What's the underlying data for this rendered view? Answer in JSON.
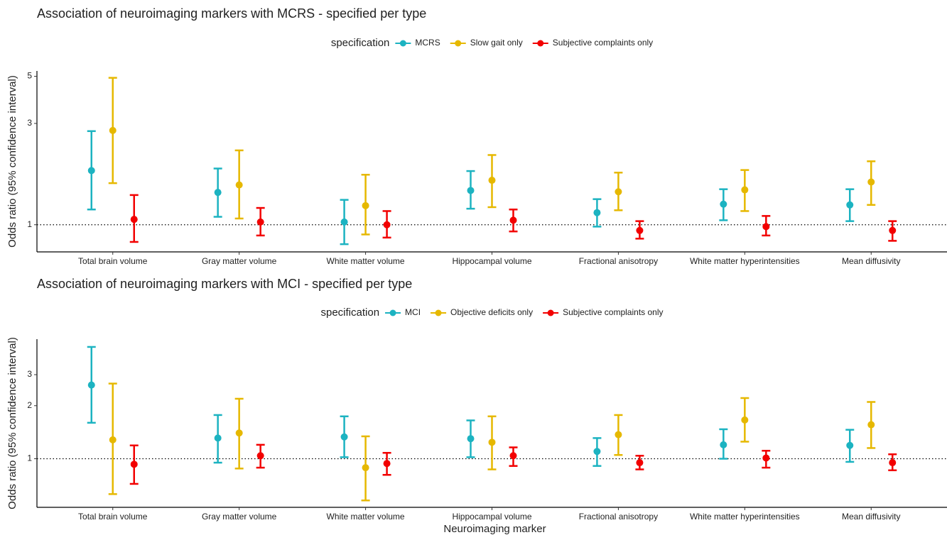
{
  "chart_data": [
    {
      "type": "errorbar",
      "title": "Association of neuroimaging markers with MCRS - specified per type",
      "legend_title": "specification",
      "y_label": "Odds ratio (95% confidence interval)",
      "log_y": true,
      "ylim": [
        0.745,
        5.3
      ],
      "yticks": [
        1,
        3,
        5
      ],
      "reference_line": 1,
      "categories": [
        "Total brain volume",
        "Gray matter volume",
        "White matter volume",
        "Hippocampal volume",
        "Fractional anisotropy",
        "White matter hyperintensities",
        "Mean diffusivity"
      ],
      "series": [
        {
          "name": "MCRS",
          "color": "#1cb3c1",
          "values": [
            1.8,
            1.42,
            1.03,
            1.45,
            1.14,
            1.25,
            1.24
          ],
          "lower": [
            1.18,
            1.09,
            0.81,
            1.19,
            0.98,
            1.05,
            1.04
          ],
          "upper": [
            2.76,
            1.84,
            1.31,
            1.79,
            1.32,
            1.47,
            1.47
          ]
        },
        {
          "name": "Slow gait only",
          "color": "#e6b800",
          "values": [
            2.78,
            1.54,
            1.23,
            1.62,
            1.43,
            1.46,
            1.59
          ],
          "lower": [
            1.57,
            1.07,
            0.9,
            1.21,
            1.17,
            1.16,
            1.24
          ],
          "upper": [
            4.92,
            2.24,
            1.72,
            2.13,
            1.76,
            1.81,
            1.99
          ]
        },
        {
          "name": "Subjective complaints only",
          "color": "#f20000",
          "values": [
            1.06,
            1.03,
            1.0,
            1.05,
            0.94,
            0.98,
            0.94
          ],
          "lower": [
            0.83,
            0.89,
            0.87,
            0.93,
            0.86,
            0.89,
            0.84
          ],
          "upper": [
            1.38,
            1.2,
            1.16,
            1.18,
            1.04,
            1.1,
            1.04
          ]
        }
      ]
    },
    {
      "type": "errorbar",
      "title": "Association of neuroimaging markers with MCI - specified per type",
      "legend_title": "specification",
      "y_label": "Odds ratio (95% confidence interval)",
      "x_label": "Neuroimaging marker",
      "log_y": true,
      "ylim": [
        0.53,
        4.77
      ],
      "yticks": [
        1,
        2,
        3
      ],
      "reference_line": 1,
      "categories": [
        "Total brain volume",
        "Gray matter volume",
        "White matter volume",
        "Hippocampal volume",
        "Fractional anisotropy",
        "White matter hyperintensities",
        "Mean diffusivity"
      ],
      "series": [
        {
          "name": "MCI",
          "color": "#1cb3c1",
          "values": [
            2.62,
            1.31,
            1.33,
            1.3,
            1.1,
            1.2,
            1.19
          ],
          "lower": [
            1.6,
            0.95,
            1.02,
            1.02,
            0.91,
            1.0,
            0.96
          ],
          "upper": [
            4.31,
            1.77,
            1.74,
            1.65,
            1.31,
            1.47,
            1.46
          ]
        },
        {
          "name": "Objective deficits only",
          "color": "#e6b800",
          "values": [
            1.28,
            1.4,
            0.89,
            1.24,
            1.37,
            1.66,
            1.56
          ],
          "lower": [
            0.63,
            0.88,
            0.58,
            0.87,
            1.05,
            1.25,
            1.15
          ],
          "upper": [
            2.67,
            2.19,
            1.34,
            1.74,
            1.77,
            2.21,
            2.1
          ]
        },
        {
          "name": "Subjective complaints only",
          "color": "#f20000",
          "values": [
            0.93,
            1.04,
            0.94,
            1.04,
            0.95,
            1.01,
            0.95
          ],
          "lower": [
            0.72,
            0.89,
            0.81,
            0.91,
            0.87,
            0.89,
            0.86
          ],
          "upper": [
            1.19,
            1.2,
            1.08,
            1.16,
            1.04,
            1.11,
            1.06
          ]
        }
      ]
    }
  ]
}
